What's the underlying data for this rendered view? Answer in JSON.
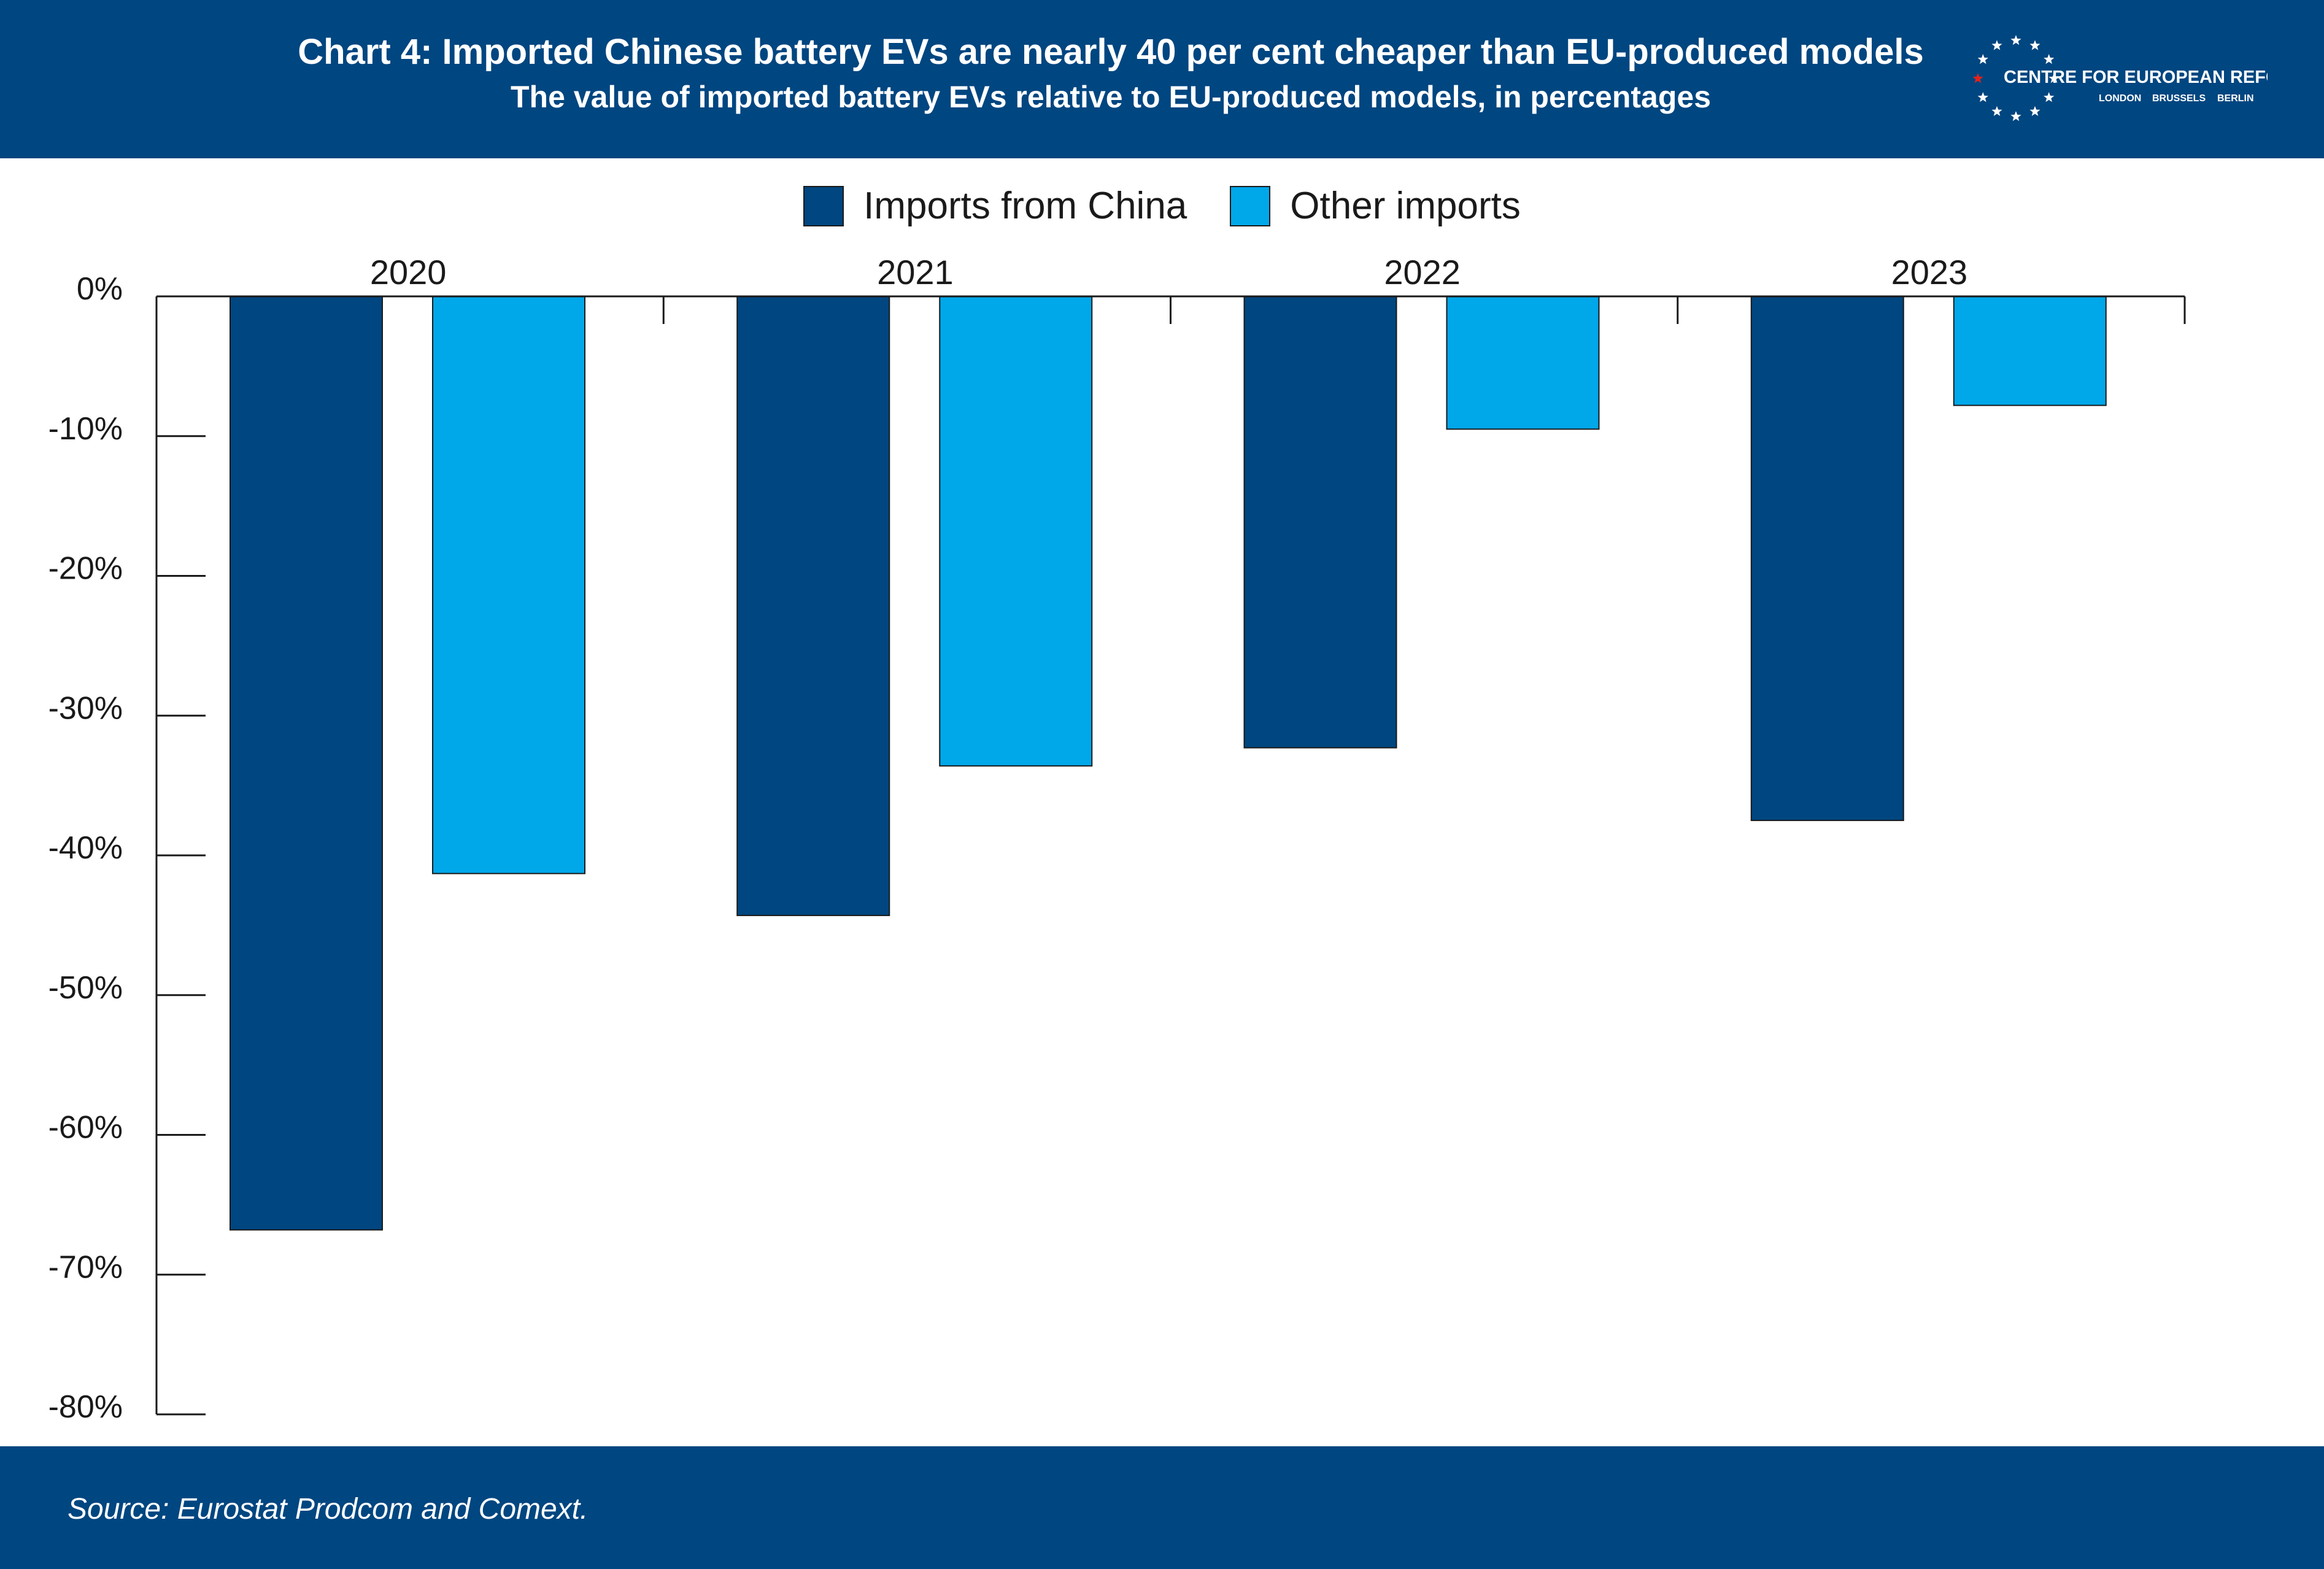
{
  "header": {
    "title": "Chart 4: Imported Chinese battery EVs are nearly 40 per cent cheaper than EU-produced models",
    "subtitle": "The value of imported battery EVs relative to EU-produced models, in percentages",
    "logo_text": "CENTRE FOR EUROPEAN REFORM",
    "logo_cities": [
      "LONDON",
      "BRUSSELS",
      "BERLIN"
    ]
  },
  "footer": {
    "source": "Source: Eurostat Prodcom and Comext."
  },
  "colors": {
    "header_bg": "#004680",
    "china": "#004680",
    "other": "#00a7e9",
    "logo_star_accent": "#e2231a"
  },
  "chart_data": {
    "type": "bar",
    "categories": [
      "2020",
      "2021",
      "2022",
      "2023"
    ],
    "series": [
      {
        "name": "Imports from China",
        "values": [
          -66.8,
          -44.3,
          -32.3,
          -37.5
        ]
      },
      {
        "name": "Other imports",
        "values": [
          -41.3,
          -33.6,
          -9.5,
          -7.8
        ]
      }
    ],
    "ylim": [
      -80,
      0
    ],
    "yticks": [
      0,
      -10,
      -20,
      -30,
      -40,
      -50,
      -60,
      -70,
      -80
    ],
    "ytick_labels": [
      "0%",
      "-10%",
      "-20%",
      "-30%",
      "-40%",
      "-50%",
      "-60%",
      "-70%",
      "-80%"
    ],
    "legend": "top-center",
    "grid": false,
    "category_labels_position": "top"
  }
}
